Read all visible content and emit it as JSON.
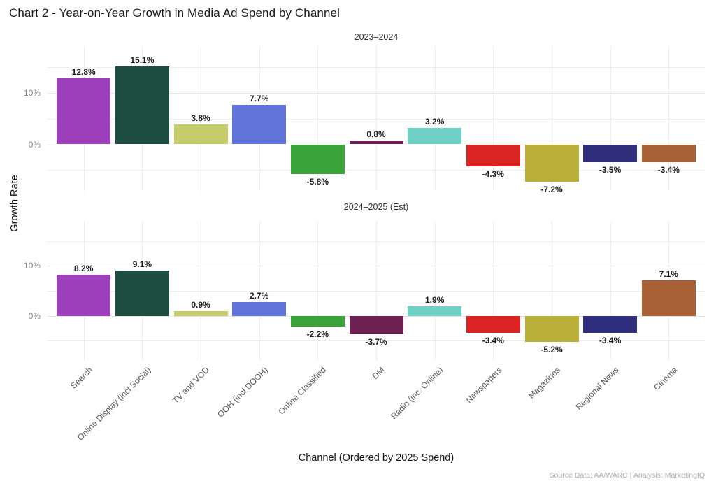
{
  "title": "Chart 2 - Year-on-Year Growth in Media Ad Spend by Channel",
  "footer": "Source Data: AA/WARC | Analysis: MarketingIQ",
  "chart_data": {
    "type": "bar",
    "title": "Chart 2 - Year-on-Year Growth in Media Ad Spend by Channel",
    "xlabel": "Channel (Ordered by 2025 Spend)",
    "ylabel": "Growth Rate",
    "categories": [
      "Search",
      "Online Display (incl Social)",
      "TV and VOD",
      "OOH (incl DOOH)",
      "Online Classified",
      "DM",
      "Radio (inc. Online)",
      "Newspapers",
      "Magazines",
      "Regional News",
      "Cinema"
    ],
    "bar_colors": [
      "#9e3fbc",
      "#1e4d42",
      "#c6cc69",
      "#5f73d8",
      "#3aa339",
      "#6d2152",
      "#6fd0c6",
      "#da2423",
      "#bbb13a",
      "#2f2e7d",
      "#a86137"
    ],
    "facets": [
      {
        "title": "2023–2024",
        "values": [
          12.8,
          15.1,
          3.8,
          7.7,
          -5.8,
          0.8,
          3.2,
          -4.3,
          -7.2,
          -3.5,
          -3.4
        ]
      },
      {
        "title": "2024–2025 (Est)",
        "values": [
          8.2,
          9.1,
          0.9,
          2.7,
          -2.2,
          -3.7,
          1.9,
          -3.4,
          -5.2,
          -3.4,
          7.1
        ]
      }
    ],
    "ylim": [
      -9,
      19
    ],
    "yticks": [
      {
        "value": 10,
        "label": "10%"
      },
      {
        "value": 0,
        "label": "0%"
      }
    ],
    "gridlines_y_major": [
      10,
      0
    ],
    "gridlines_y_minor": [
      15,
      5,
      -5
    ],
    "grid": true,
    "legend": false,
    "value_labels": true
  }
}
